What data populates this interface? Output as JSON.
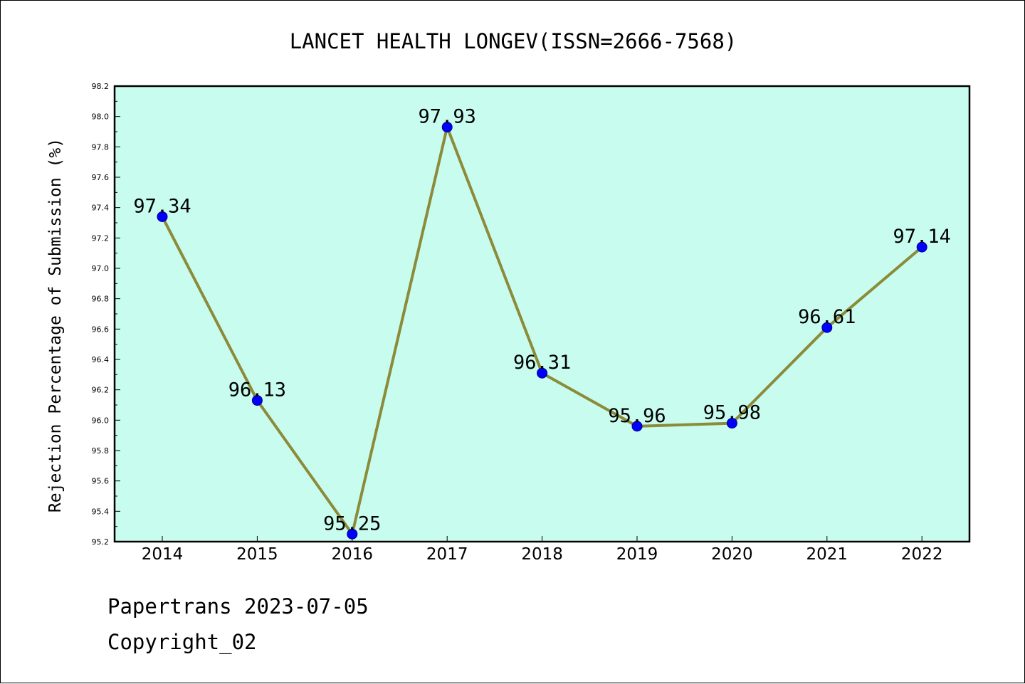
{
  "chart_data": {
    "type": "line",
    "title": "LANCET HEALTH LONGEV(ISSN=2666-7568)",
    "xlabel": "",
    "ylabel": "Rejection Percentage of Submission (%)",
    "categories": [
      "2014",
      "2015",
      "2016",
      "2017",
      "2018",
      "2019",
      "2020",
      "2021",
      "2022"
    ],
    "series": [
      {
        "values": [
          97.34,
          96.13,
          95.25,
          97.93,
          96.31,
          95.96,
          95.98,
          96.61,
          97.14
        ]
      }
    ],
    "data_labels": [
      "97.34",
      "96.13",
      "95.25",
      "97.93",
      "96.31",
      "95.96",
      "95.98",
      "96.61",
      "97.14"
    ],
    "ylim": [
      95.2,
      98.2
    ],
    "yticks": [
      "95.2",
      "95.4",
      "95.6",
      "95.8",
      "96.0",
      "96.2",
      "96.4",
      "96.6",
      "96.8",
      "97.0",
      "97.2",
      "97.4",
      "97.6",
      "97.8",
      "98.0",
      "98.2"
    ],
    "grid": false,
    "legend": "none",
    "colors": {
      "plot_background": "#c8fcee",
      "line": "#8b8b3a",
      "marker": "#0000ff"
    }
  },
  "footer": {
    "line1": "Papertrans 2023-07-05",
    "line2": "Copyright_02"
  }
}
